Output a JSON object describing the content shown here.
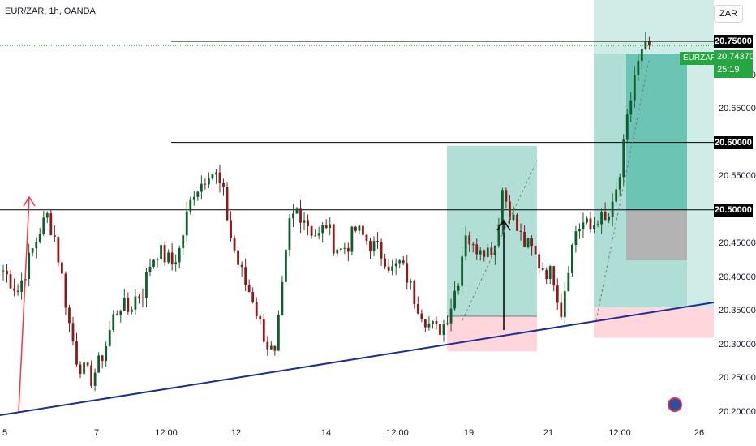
{
  "header": {
    "title": "EUR/ZAR, 1h, OANDA"
  },
  "currency_selector": "ZAR",
  "last_price": {
    "symbol": "EURZAR",
    "value": "20.74370",
    "countdown": "25:19",
    "color": "#26a641"
  },
  "colors": {
    "up": "#26a69a",
    "down": "#ef5350",
    "candle_body_up": "#0f5d2e",
    "candle_body_down": "#8b1a1a",
    "trendline": "#1a2f8f",
    "arrow_up_left": "#f23645",
    "target_zone": "#a8dcd1",
    "stop_zone": "#ffd6dc",
    "level_line": "#000000"
  },
  "chart_data": {
    "type": "candlestick",
    "symbol": "EUR/ZAR",
    "timeframe": "1h",
    "source": "OANDA",
    "ylim": [
      20.185,
      20.775
    ],
    "y_ticks": [
      "20.20000",
      "20.25000",
      "20.30000",
      "20.35000",
      "20.40000",
      "20.45000",
      "20.50000",
      "20.55000",
      "20.60000",
      "20.65000",
      "20.70000",
      "20.75000"
    ],
    "highlighted_levels": [
      "20.75000",
      "20.60000",
      "20.50000"
    ],
    "x_ticks": [
      "5",
      "7",
      "12:00",
      "12",
      "14",
      "12:00",
      "19",
      "21",
      "12:00",
      "26"
    ],
    "close_path": [
      [
        0,
        20.41
      ],
      [
        2,
        20.38
      ],
      [
        4,
        20.44
      ],
      [
        5,
        20.47
      ],
      [
        6,
        20.49
      ],
      [
        7,
        20.46
      ],
      [
        8,
        20.4
      ],
      [
        9,
        20.33
      ],
      [
        10,
        20.28
      ],
      [
        11,
        20.26
      ],
      [
        12,
        20.25
      ],
      [
        13,
        20.27
      ],
      [
        14,
        20.3
      ],
      [
        15,
        20.34
      ],
      [
        16,
        20.36
      ],
      [
        17,
        20.35
      ],
      [
        18,
        20.37
      ],
      [
        19,
        20.38
      ],
      [
        20,
        20.42
      ],
      [
        21,
        20.44
      ],
      [
        22,
        20.43
      ],
      [
        23,
        20.42
      ],
      [
        24,
        20.44
      ],
      [
        25,
        20.49
      ],
      [
        26,
        20.53
      ],
      [
        27,
        20.54
      ],
      [
        28,
        20.56
      ],
      [
        29,
        20.55
      ],
      [
        30,
        20.52
      ],
      [
        31,
        20.46
      ],
      [
        32,
        20.42
      ],
      [
        33,
        20.39
      ],
      [
        34,
        20.37
      ],
      [
        35,
        20.33
      ],
      [
        36,
        20.3
      ],
      [
        37,
        20.28
      ],
      [
        38,
        20.38
      ],
      [
        39,
        20.48
      ],
      [
        40,
        20.5
      ],
      [
        41,
        20.49
      ],
      [
        42,
        20.47
      ],
      [
        43,
        20.46
      ],
      [
        44,
        20.48
      ],
      [
        45,
        20.45
      ],
      [
        46,
        20.44
      ],
      [
        47,
        20.45
      ],
      [
        48,
        20.47
      ],
      [
        49,
        20.46
      ],
      [
        50,
        20.45
      ],
      [
        51,
        20.44
      ],
      [
        52,
        20.43
      ],
      [
        53,
        20.41
      ],
      [
        54,
        20.42
      ],
      [
        55,
        20.4
      ],
      [
        56,
        20.37
      ],
      [
        57,
        20.35
      ],
      [
        58,
        20.33
      ],
      [
        59,
        20.32
      ],
      [
        60,
        20.33
      ],
      [
        61,
        20.36
      ],
      [
        62,
        20.4
      ],
      [
        63,
        20.47
      ],
      [
        64,
        20.44
      ],
      [
        65,
        20.45
      ],
      [
        66,
        20.44
      ],
      [
        67,
        20.45
      ],
      [
        68,
        20.53
      ],
      [
        69,
        20.5
      ],
      [
        70,
        20.47
      ],
      [
        71,
        20.45
      ],
      [
        72,
        20.44
      ],
      [
        73,
        20.42
      ],
      [
        74,
        20.41
      ],
      [
        75,
        20.4
      ],
      [
        76,
        20.35
      ],
      [
        77,
        20.42
      ],
      [
        78,
        20.47
      ],
      [
        79,
        20.48
      ],
      [
        80,
        20.47
      ],
      [
        81,
        20.49
      ],
      [
        82,
        20.48
      ],
      [
        83,
        20.5
      ],
      [
        84,
        20.55
      ],
      [
        85,
        20.63
      ],
      [
        86,
        20.7
      ],
      [
        87,
        20.73
      ],
      [
        88,
        20.744
      ]
    ],
    "annotations": {
      "trendline": "rising support from 5 to 26",
      "long_position_1": {
        "entry": 20.342,
        "target": 20.595,
        "stop": 20.29
      },
      "long_position_2": {
        "entry": 20.355,
        "target": 20.775,
        "stop": 20.31
      },
      "grey_box": {
        "top": 20.5,
        "bottom": 20.425
      }
    }
  }
}
